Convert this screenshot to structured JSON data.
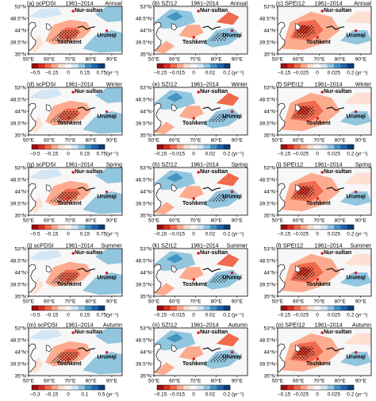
{
  "figure": {
    "lat_ticks": [
      "53°N",
      "48.5°N",
      "44°N",
      "39.5°N",
      "35°N"
    ],
    "lon_ticks": [
      "50°E",
      "60°E",
      "70°E",
      "80°E",
      "90°E"
    ],
    "cities": [
      {
        "name": "Nur-sultan",
        "lon": 71.4,
        "lat": 51.2
      },
      {
        "name": "Toshkent",
        "lon": 69.2,
        "lat": 41.3
      },
      {
        "name": "Urumqi",
        "lon": 87.6,
        "lat": 43.8
      }
    ],
    "unit_label": "(yr⁻¹)",
    "colorbar_colors": [
      "#9e0d14",
      "#d7301f",
      "#f16a4d",
      "#fcab8f",
      "#fde0d2",
      "#f7f7f7",
      "#d4e6f4",
      "#92c5de",
      "#4393c3",
      "#2166ac",
      "#0b3d7a"
    ],
    "panels": [
      {
        "label": "(a) scPDSI",
        "period": "1961–2014",
        "season": "Annual",
        "ticks": [
          "−0.5",
          "−0.15",
          "0",
          "0.15",
          "0.75"
        ],
        "pattern": "a"
      },
      {
        "label": "(b) SZI12",
        "period": "1961–2014",
        "season": "Annual",
        "ticks": [
          "−0.15",
          "−0.015",
          "0",
          "0.02",
          "0.2"
        ],
        "pattern": "b"
      },
      {
        "label": "(c) SPEI12",
        "period": "1961–2014",
        "season": "Annual",
        "ticks": [
          "−0.15",
          "−0.025",
          "0",
          "0.025",
          "0.2"
        ],
        "pattern": "c"
      },
      {
        "label": "(d) scPDSI",
        "period": "1961–2014",
        "season": "Winter",
        "ticks": [
          "−0.5",
          "−0.15",
          "0",
          "0.15",
          "0.75"
        ],
        "pattern": "a"
      },
      {
        "label": "(e) SZI12",
        "period": "1961–2014",
        "season": "Winter",
        "ticks": [
          "−0.15",
          "−0.015",
          "0",
          "0.02",
          "0.2"
        ],
        "pattern": "b"
      },
      {
        "label": "(f) SPEI12",
        "period": "1961–2014",
        "season": "Winter",
        "ticks": [
          "−0.15",
          "−0.025",
          "0",
          "0.025",
          "0.2"
        ],
        "pattern": "c"
      },
      {
        "label": "(g) scPDSI",
        "period": "1961–2014",
        "season": "Spring",
        "ticks": [
          "−0.5",
          "−0.15",
          "0",
          "0.15",
          "0.75"
        ],
        "pattern": "a"
      },
      {
        "label": "(h) SZI12",
        "period": "1961–2014",
        "season": "Spring",
        "ticks": [
          "−0.15",
          "−0.015",
          "0",
          "0.02",
          "0.2"
        ],
        "pattern": "b"
      },
      {
        "label": "(i) SPEI12",
        "period": "1961–2014",
        "season": "Spring",
        "ticks": [
          "−0.15",
          "−0.025",
          "0",
          "0.025",
          "0.2"
        ],
        "pattern": "c"
      },
      {
        "label": "(j) scPDSI",
        "period": "1961–2014",
        "season": "Summer",
        "ticks": [
          "−0.5",
          "−0.15",
          "0",
          "0.15",
          "0.75"
        ],
        "pattern": "a"
      },
      {
        "label": "(k) SZI12",
        "period": "1961–2014",
        "season": "Summer",
        "ticks": [
          "−0.15",
          "−0.015",
          "0",
          "0.02",
          "0.2"
        ],
        "pattern": "b"
      },
      {
        "label": "(l) SPEI12",
        "period": "1961–2014",
        "season": "Summer",
        "ticks": [
          "−0.15",
          "−0.025",
          "0",
          "0.025",
          "0.2"
        ],
        "pattern": "c"
      },
      {
        "label": "(m) scPDSI",
        "period": "1961–2014",
        "season": "Autumn",
        "ticks": [
          "−0.3",
          "−0.15",
          "0",
          "0.1",
          "0.5"
        ],
        "pattern": "a"
      },
      {
        "label": "(n) SZI12",
        "period": "1961–2014",
        "season": "Autumn",
        "ticks": [
          "−0.15",
          "−0.015",
          "0",
          "0.02",
          "0.2"
        ],
        "pattern": "b"
      },
      {
        "label": "(o) SPEI12",
        "period": "1961–2014",
        "season": "Autumn",
        "ticks": [
          "−0.15",
          "−0.025",
          "0",
          "0.025",
          "0.2"
        ],
        "pattern": "c"
      }
    ]
  }
}
